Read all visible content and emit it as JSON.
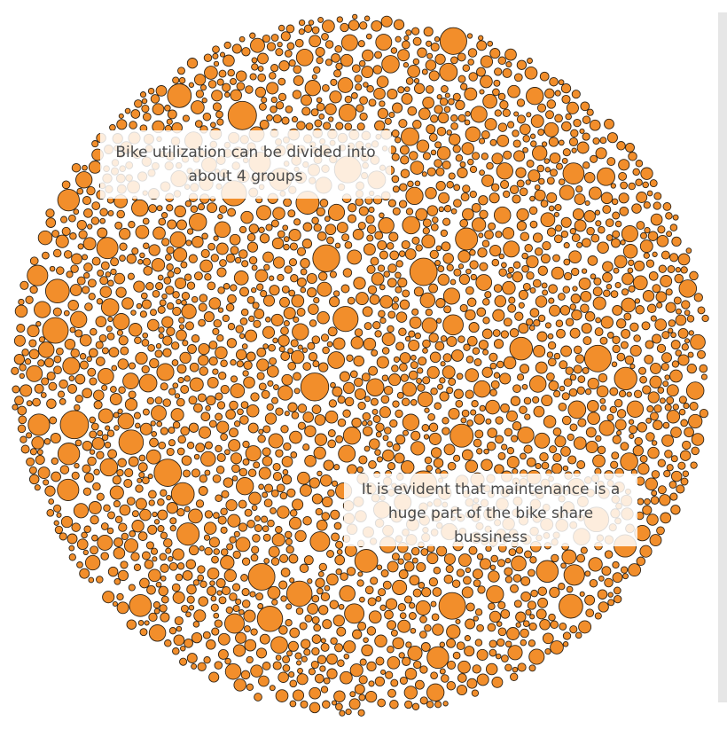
{
  "chart_data": {
    "type": "packed-bubble",
    "colors": {
      "bubble_fill": "#f28e2b",
      "bubble_stroke": "#2e2418"
    },
    "legend": "none",
    "annotations": [
      "Bike utilization can be divided into about 4 groups",
      "It is evident that maintenance is a huge part of the bike share bussiness"
    ]
  }
}
